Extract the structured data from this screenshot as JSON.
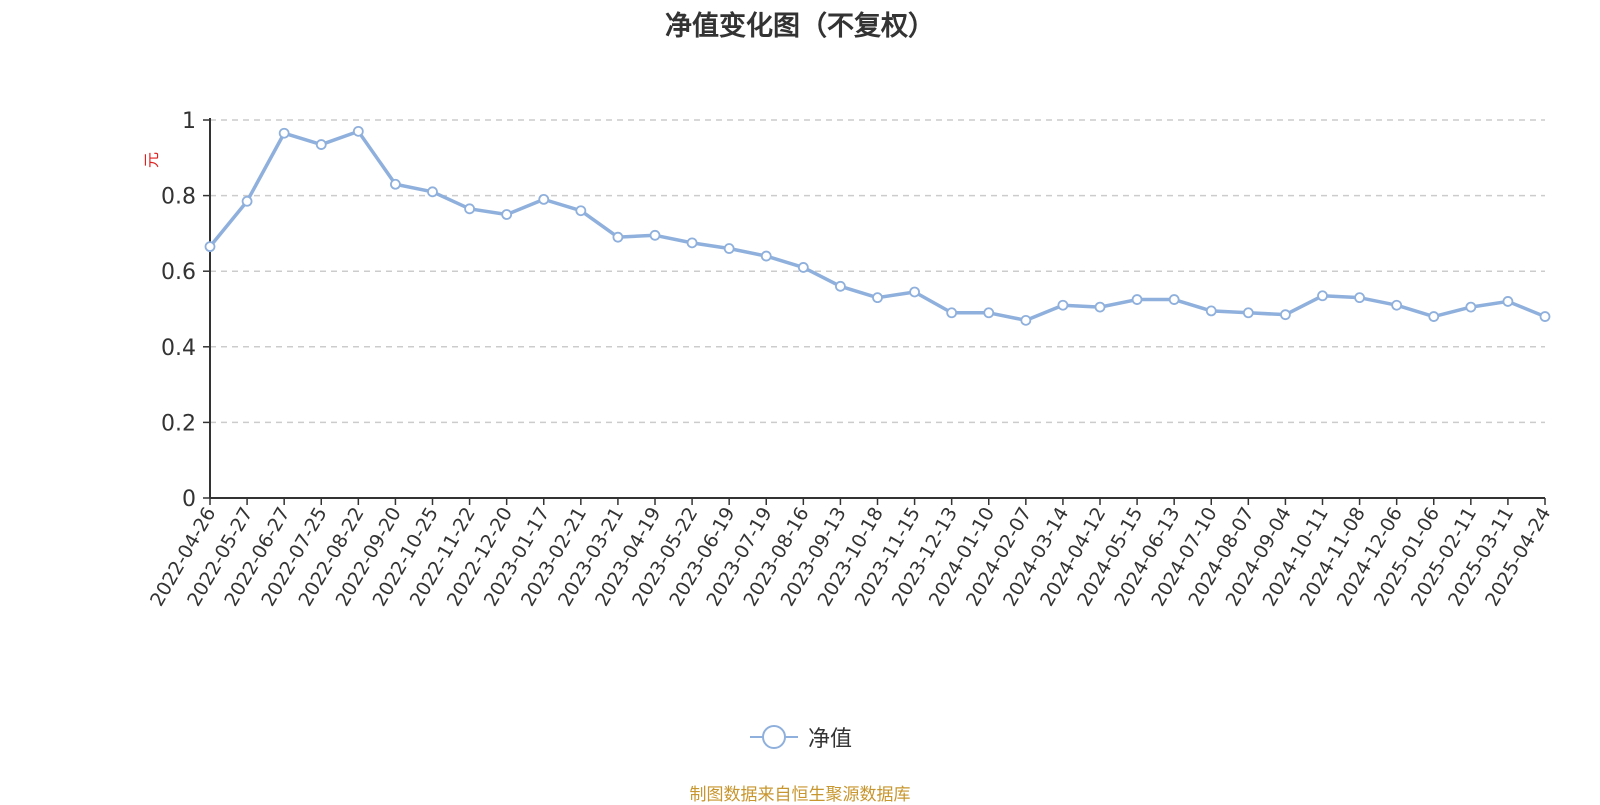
{
  "chart_data": {
    "type": "line",
    "title": "净值变化图（不复权）",
    "ylabel": "元",
    "xlabel": "",
    "ylim": [
      0,
      1
    ],
    "y_ticks": [
      "0",
      "0.2",
      "0.4",
      "0.6",
      "0.8",
      "1"
    ],
    "grid": true,
    "legend_position": "bottom-center",
    "series_color": "#8fb0dc",
    "x_tick_labels": [
      "2022-04-26",
      "2022-05-27",
      "2022-06-27",
      "2022-07-25",
      "2022-08-22",
      "2022-09-20",
      "2022-10-25",
      "2022-11-22",
      "2022-12-20",
      "2023-01-17",
      "2023-02-21",
      "2023-03-21",
      "2023-04-19",
      "2023-05-22",
      "2023-06-19",
      "2023-07-19",
      "2023-08-16",
      "2023-09-13",
      "2023-10-18",
      "2023-11-15",
      "2023-12-13",
      "2024-01-10",
      "2024-02-07",
      "2024-03-14",
      "2024-04-12",
      "2024-05-15",
      "2024-06-13",
      "2024-07-10",
      "2024-08-07",
      "2024-09-04",
      "2024-10-11",
      "2024-11-08",
      "2024-12-06",
      "2025-01-06",
      "2025-02-11",
      "2025-03-11",
      "2025-04-24"
    ],
    "series": [
      {
        "name": "净值",
        "x": [
          "2022-04-26",
          "2022-05-27",
          "2022-06-27",
          "2022-07-25",
          "2022-08-22",
          "2022-09-20",
          "2022-10-25",
          "2022-11-22",
          "2022-12-20",
          "2023-01-17",
          "2023-02-21",
          "2023-03-21",
          "2023-04-19",
          "2023-05-22",
          "2023-06-19",
          "2023-07-19",
          "2023-08-16",
          "2023-09-13",
          "2023-10-18",
          "2023-11-15",
          "2023-12-13",
          "2024-01-10",
          "2024-02-07",
          "2024-03-14",
          "2024-04-12",
          "2024-05-15",
          "2024-06-13",
          "2024-07-10",
          "2024-08-07",
          "2024-09-04",
          "2024-10-11",
          "2024-11-08",
          "2024-12-06",
          "2025-01-06",
          "2025-02-11",
          "2025-03-11",
          "2025-04-24"
        ],
        "values": [
          0.665,
          0.785,
          0.965,
          0.935,
          0.97,
          0.83,
          0.81,
          0.765,
          0.75,
          0.79,
          0.76,
          0.69,
          0.695,
          0.675,
          0.66,
          0.64,
          0.61,
          0.56,
          0.53,
          0.545,
          0.49,
          0.49,
          0.47,
          0.51,
          0.505,
          0.525,
          0.525,
          0.495,
          0.49,
          0.485,
          0.535,
          0.53,
          0.51,
          0.48,
          0.505,
          0.52,
          0.48
        ]
      }
    ]
  },
  "legend": {
    "label": "净值"
  },
  "footer": {
    "source": "制图数据来自恒生聚源数据库"
  }
}
